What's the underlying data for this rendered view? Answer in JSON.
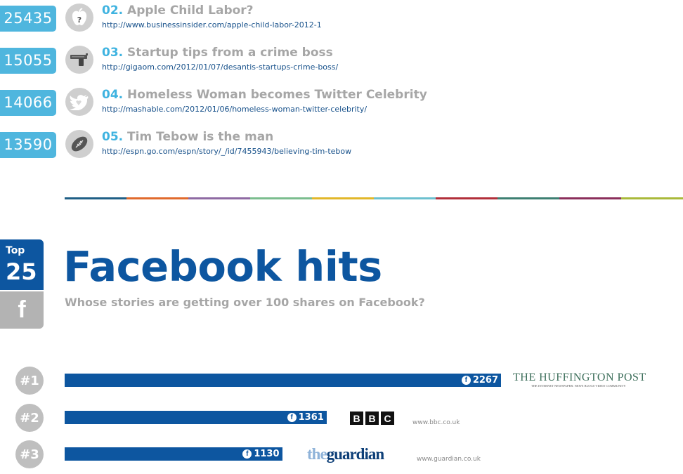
{
  "stories": [
    {
      "count": "25435",
      "number": "02.",
      "title": "Apple Child Labor?",
      "url": "http://www.businessinsider.com/apple-child-labor-2012-1",
      "icon": "apple-question-icon"
    },
    {
      "count": "15055",
      "number": "03.",
      "title": "Startup tips from a crime boss",
      "url": "http://gigaom.com/2012/01/07/desantis-startups-crime-boss/",
      "icon": "gun-icon"
    },
    {
      "count": "14066",
      "number": "04.",
      "title": "Homeless Woman becomes Twitter Celebrity",
      "url": "http://mashable.com/2012/01/06/homeless-woman-twitter-celebrity/",
      "icon": "twitter-bird-icon"
    },
    {
      "count": "13590",
      "number": "05.",
      "title": "Tim Tebow is the man",
      "url": "http://espn.go.com/espn/story/_/id/7455943/believing-tim-tebow",
      "icon": "football-icon"
    }
  ],
  "stripe_colors": [
    "#1f5f86",
    "#e06a2c",
    "#8e6aa3",
    "#7bbd8e",
    "#e2b729",
    "#6cc0cf",
    "#b22f3a",
    "#3d7f72",
    "#8b2f5b",
    "#a9b93a"
  ],
  "section": {
    "badge_top": "Top",
    "badge_num": "25",
    "badge_fb": "f",
    "title": "Facebook hits",
    "subtitle": "Whose stories are getting over 100 shares on Facebook?"
  },
  "chart_data": {
    "type": "bar",
    "categories": [
      "#1",
      "#2",
      "#3"
    ],
    "values": [
      2267,
      1361,
      1130
    ],
    "labels": [
      "2267",
      "1361",
      "1130"
    ],
    "sources": [
      {
        "name": "THE HUFFINGTON POST",
        "tagline": "THE INTERNET NEWSPAPER: NEWS BLOGS VIDEO COMMUNITY",
        "url": ""
      },
      {
        "name": "BBC",
        "url": "www.bbc.co.uk"
      },
      {
        "name_a": "the",
        "name_b": "guardian",
        "url": "www.guardian.co.uk"
      }
    ]
  },
  "colors": {
    "count_blue": "#4fb6de",
    "facebook_blue": "#0d56a0",
    "gray": "#a6a6a6"
  }
}
